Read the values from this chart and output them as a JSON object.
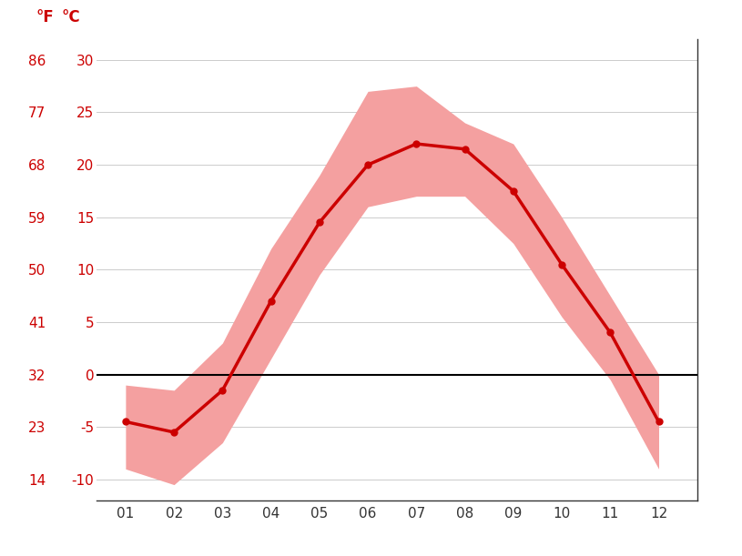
{
  "months": [
    1,
    2,
    3,
    4,
    5,
    6,
    7,
    8,
    9,
    10,
    11,
    12
  ],
  "month_labels": [
    "01",
    "02",
    "03",
    "04",
    "05",
    "06",
    "07",
    "08",
    "09",
    "10",
    "11",
    "12"
  ],
  "mean_temp_c": [
    -4.5,
    -5.5,
    -1.5,
    7.0,
    14.5,
    20.0,
    22.0,
    21.5,
    17.5,
    10.5,
    4.0,
    -4.5
  ],
  "max_temp_c": [
    -1.0,
    -1.5,
    3.0,
    12.0,
    19.0,
    27.0,
    27.5,
    24.0,
    22.0,
    15.0,
    7.5,
    0.0
  ],
  "min_temp_c": [
    -9.0,
    -10.5,
    -6.5,
    1.5,
    9.5,
    16.0,
    17.0,
    17.0,
    12.5,
    5.5,
    -0.5,
    -9.0
  ],
  "line_color": "#cc0000",
  "band_color": "#f4a0a0",
  "zero_line_color": "#000000",
  "grid_color": "#cccccc",
  "tick_color": "#cc0000",
  "bg_color": "#ffffff",
  "label_F": "°F",
  "label_C": "°C",
  "yticks_C": [
    -10,
    -5,
    0,
    5,
    10,
    15,
    20,
    25,
    30
  ],
  "yticks_F": [
    14,
    23,
    32,
    41,
    50,
    59,
    68,
    77,
    86
  ],
  "ylim_C": [
    -12,
    32
  ],
  "xlim": [
    0.4,
    12.8
  ]
}
